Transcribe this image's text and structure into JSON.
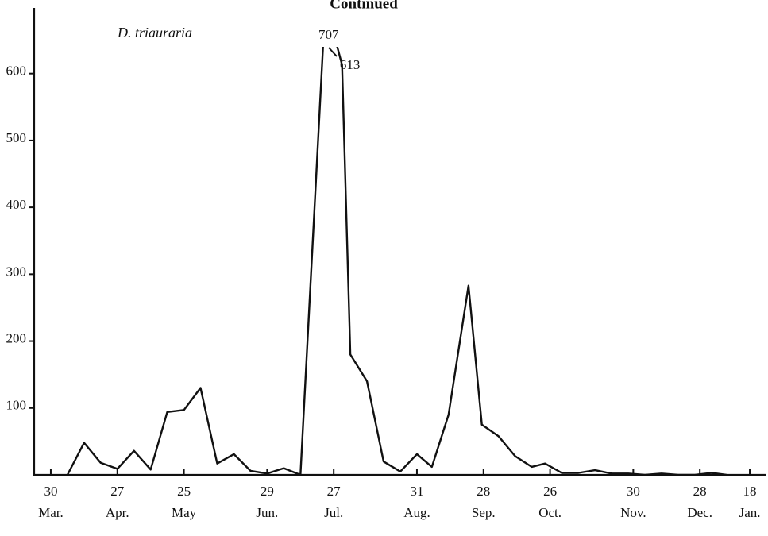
{
  "chart_data": {
    "type": "line",
    "title": "Continued",
    "annotation": "D. triauraria",
    "x": [
      1,
      2,
      3,
      4,
      5,
      6,
      7,
      8,
      9,
      10,
      11,
      12,
      13,
      14,
      15,
      16.5,
      17.5,
      18,
      19,
      20,
      21,
      22,
      22.9,
      23.9,
      25.1,
      25.9,
      26.9,
      27.9,
      28.9,
      29.7,
      30.7,
      31.7,
      32.7,
      33.7,
      34.7,
      35.7,
      36.7,
      37.7,
      38.7,
      39.7,
      40.6
    ],
    "values": [
      0,
      48,
      18,
      9,
      36,
      8,
      94,
      97,
      130,
      17,
      31,
      6,
      2,
      10,
      0,
      707,
      613,
      180,
      140,
      20,
      5,
      31,
      12,
      90,
      283,
      75,
      58,
      28,
      12,
      17,
      3,
      3,
      7,
      2,
      2,
      0,
      2,
      0,
      0,
      3,
      0
    ],
    "color": "#111111",
    "xlim": [
      -1,
      43
    ],
    "xticks": [
      {
        "value": 0,
        "label": "30"
      },
      {
        "value": 4,
        "label": "27"
      },
      {
        "value": 8,
        "label": "25"
      },
      {
        "value": 13,
        "label": "29"
      },
      {
        "value": 17,
        "label": "27"
      },
      {
        "value": 22,
        "label": "31"
      },
      {
        "value": 26,
        "label": "28"
      },
      {
        "value": 30,
        "label": "26"
      },
      {
        "value": 35,
        "label": "30"
      },
      {
        "value": 39,
        "label": "28"
      },
      {
        "value": 42,
        "label": "18"
      }
    ],
    "xtick_months": [
      "Mar.",
      "Apr.",
      "May",
      "Jun.",
      "Jul.",
      "Aug.",
      "Sep.",
      "Oct.",
      "Nov.",
      "Dec.",
      "Jan."
    ],
    "ylim": [
      0,
      640
    ],
    "yticks": [
      100,
      200,
      300,
      400,
      500,
      600
    ],
    "grid": false
  }
}
